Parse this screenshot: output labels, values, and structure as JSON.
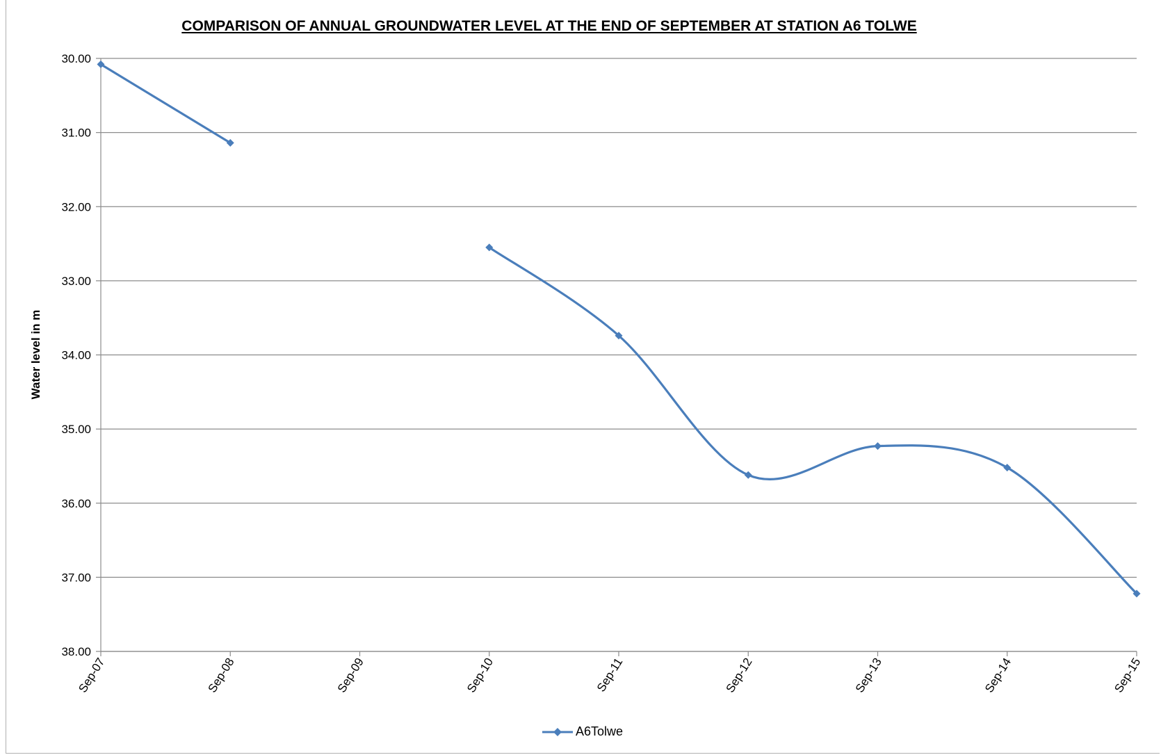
{
  "chart_data": {
    "type": "line",
    "title": "COMPARISON OF ANNUAL GROUNDWATER LEVEL AT THE END OF SEPTEMBER AT STATION A6 TOLWE",
    "ylabel": "Water level in m",
    "xlabel": "",
    "categories": [
      "Sep-07",
      "Sep-08",
      "Sep-09",
      "Sep-10",
      "Sep-11",
      "Sep-12",
      "Sep-13",
      "Sep-14",
      "Sep-15"
    ],
    "y_ticks": [
      "30.00",
      "31.00",
      "32.00",
      "33.00",
      "34.00",
      "35.00",
      "36.00",
      "37.00",
      "38.00"
    ],
    "ylim": [
      30,
      38
    ],
    "y_inverted": true,
    "grid": "horizontal",
    "legend_position": "bottom",
    "series": [
      {
        "name": "A6Tolwe",
        "color": "#4a7ebb",
        "marker": "diamond",
        "smooth": true,
        "values": [
          30.08,
          31.14,
          null,
          32.55,
          33.74,
          35.62,
          35.23,
          35.52,
          37.22
        ]
      }
    ]
  }
}
